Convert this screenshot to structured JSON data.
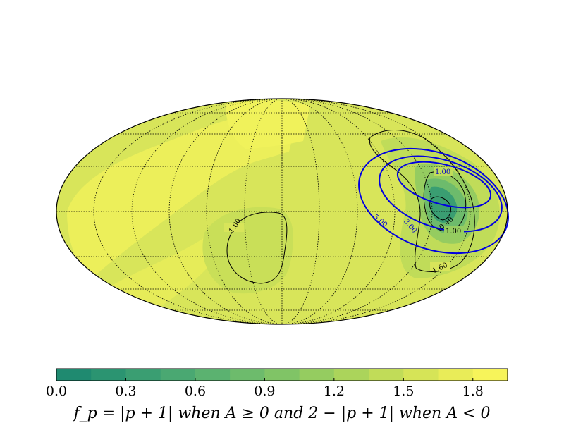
{
  "chart_data": {
    "type": "heatmap",
    "projection": "mollweide",
    "grid": true,
    "colorbar": {
      "position": "bottom",
      "colors": [
        "#1f8a70",
        "#2b9471",
        "#3a9e72",
        "#4aa872",
        "#5bb270",
        "#6dbb6c",
        "#80c466",
        "#95cc60",
        "#abd45b",
        "#c1dc58",
        "#d6e457",
        "#e9ec58",
        "#f7f45a"
      ],
      "ticks": [
        "0.0",
        "0.3",
        "0.6",
        "0.9",
        "1.2",
        "1.5",
        "1.8"
      ],
      "range": [
        0.0,
        1.95
      ],
      "label": "f_p = |p + 1| when A ≥ 0 and 2 − |p + 1| when A < 0"
    },
    "black_contours": [
      {
        "value": 1.6,
        "label": "1.60"
      },
      {
        "value": 1.6,
        "label": "1.60"
      },
      {
        "value": 1.0,
        "label": "1.00"
      },
      {
        "value": 0.4,
        "label": "0.40"
      }
    ],
    "blue_contours": [
      {
        "value": 1.0,
        "label": "1.00"
      },
      {
        "value": 3.0,
        "label": "3.00"
      },
      {
        "value": 5.0,
        "label": "5.00"
      }
    ]
  }
}
